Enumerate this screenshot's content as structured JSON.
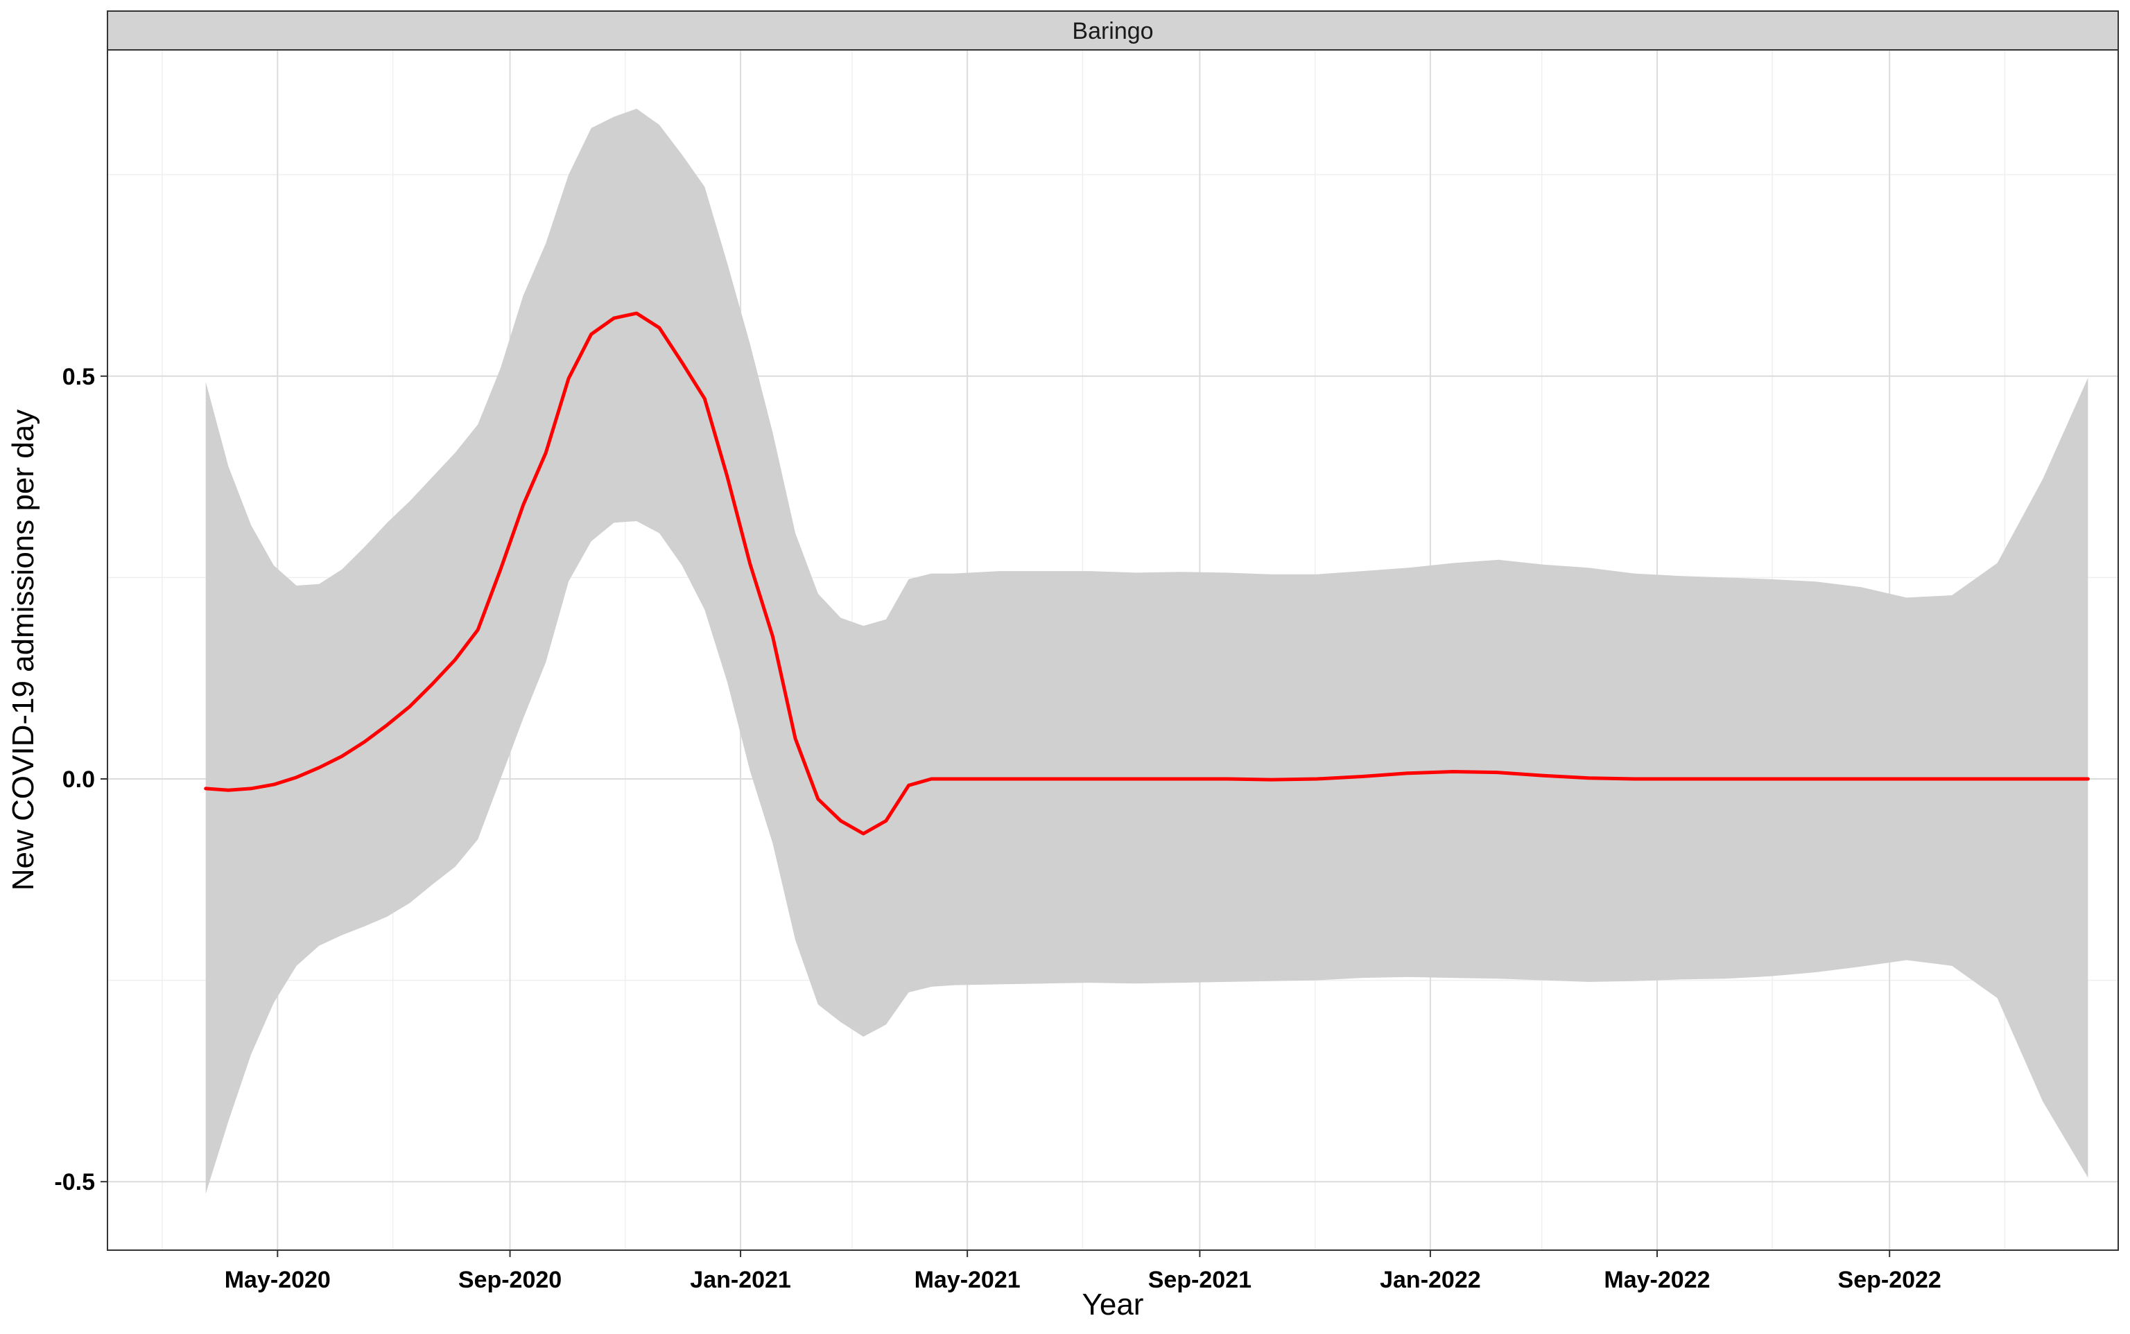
{
  "chart_data": {
    "type": "area",
    "facet_label": "Baringo",
    "xlabel": "Year",
    "ylabel": "New COVID-19 admissions per day",
    "xlim": [
      "2020-02-01",
      "2022-12-31"
    ],
    "ylim": [
      -0.585,
      0.905
    ],
    "y_ticks": [
      {
        "value": -0.5,
        "label": "-0.5"
      },
      {
        "value": 0.0,
        "label": "0.0"
      },
      {
        "value": 0.5,
        "label": "0.5"
      }
    ],
    "y_minor_ticks": [
      -0.25,
      0.25,
      0.75
    ],
    "x_ticks": [
      {
        "value": "2020-05-01",
        "label": "May-2020"
      },
      {
        "value": "2020-09-01",
        "label": "Sep-2020"
      },
      {
        "value": "2021-01-01",
        "label": "Jan-2021"
      },
      {
        "value": "2021-05-01",
        "label": "May-2021"
      },
      {
        "value": "2021-09-01",
        "label": "Sep-2021"
      },
      {
        "value": "2022-01-01",
        "label": "Jan-2022"
      },
      {
        "value": "2022-05-01",
        "label": "May-2022"
      },
      {
        "value": "2022-09-01",
        "label": "Sep-2022"
      }
    ],
    "x_minor_ticks": [
      "2020-03-01",
      "2020-07-01",
      "2020-11-01",
      "2021-03-01",
      "2021-07-01",
      "2021-11-01",
      "2022-03-01",
      "2022-07-01",
      "2022-11-01"
    ],
    "grid": true,
    "colors": {
      "line": "#ff0000",
      "ribbon": "#d0d0d0",
      "grid_major": "#dcdcdc",
      "grid_minor": "#efefef",
      "strip_fill": "#d3d3d3",
      "panel_border": "#333333"
    },
    "series": [
      {
        "x": [
          "2020-03-24",
          "2020-04-05",
          "2020-04-17",
          "2020-04-29",
          "2020-05-11",
          "2020-05-23",
          "2020-06-04",
          "2020-06-16",
          "2020-06-28",
          "2020-07-10",
          "2020-07-22",
          "2020-08-03",
          "2020-08-15",
          "2020-08-27",
          "2020-09-08",
          "2020-09-20",
          "2020-10-02",
          "2020-10-14",
          "2020-10-26",
          "2020-11-07",
          "2020-11-19",
          "2020-12-01",
          "2020-12-13",
          "2020-12-25",
          "2021-01-06",
          "2021-01-18",
          "2021-01-30",
          "2021-02-11",
          "2021-02-23",
          "2021-03-07",
          "2021-03-19",
          "2021-03-31",
          "2021-04-12",
          "2021-04-24",
          "2021-05-18",
          "2021-06-11",
          "2021-07-05",
          "2021-07-29",
          "2021-08-22",
          "2021-09-15",
          "2021-10-09",
          "2021-11-02",
          "2021-11-26",
          "2021-12-20",
          "2022-01-13",
          "2022-02-06",
          "2022-03-02",
          "2022-03-26",
          "2022-04-19",
          "2022-05-13",
          "2022-06-06",
          "2022-06-30",
          "2022-07-24",
          "2022-08-17",
          "2022-09-10",
          "2022-10-04",
          "2022-10-28",
          "2022-11-21",
          "2022-12-15"
        ],
        "y": [
          -0.012,
          -0.014,
          -0.012,
          -0.007,
          0.002,
          0.014,
          0.028,
          0.046,
          0.067,
          0.09,
          0.118,
          0.148,
          0.185,
          0.26,
          0.34,
          0.405,
          0.497,
          0.552,
          0.572,
          0.578,
          0.56,
          0.517,
          0.472,
          0.375,
          0.267,
          0.177,
          0.05,
          -0.025,
          -0.052,
          -0.068,
          -0.052,
          -0.008,
          0.0,
          0.0,
          0.0,
          0.0,
          0.0,
          0.0,
          0.0,
          0.0,
          -0.001,
          0.0,
          0.003,
          0.007,
          0.009,
          0.008,
          0.004,
          0.001,
          0.0,
          0.0,
          0.0,
          0.0,
          0.0,
          0.0,
          0.0,
          0.0,
          0.0,
          0.0,
          0.0
        ],
        "lower": [
          -0.515,
          -0.425,
          -0.342,
          -0.278,
          -0.232,
          -0.207,
          -0.194,
          -0.183,
          -0.171,
          -0.154,
          -0.131,
          -0.109,
          -0.075,
          0.0,
          0.075,
          0.145,
          0.245,
          0.295,
          0.318,
          0.32,
          0.305,
          0.265,
          0.21,
          0.12,
          0.01,
          -0.08,
          -0.2,
          -0.28,
          -0.302,
          -0.32,
          -0.305,
          -0.265,
          -0.258,
          -0.256,
          -0.255,
          -0.254,
          -0.253,
          -0.254,
          -0.253,
          -0.252,
          -0.251,
          -0.25,
          -0.247,
          -0.246,
          -0.247,
          -0.248,
          -0.25,
          -0.252,
          -0.251,
          -0.249,
          -0.248,
          -0.245,
          -0.24,
          -0.233,
          -0.225,
          -0.232,
          -0.272,
          -0.4,
          -0.495
        ],
        "upper": [
          0.493,
          0.388,
          0.315,
          0.265,
          0.24,
          0.242,
          0.26,
          0.288,
          0.318,
          0.345,
          0.375,
          0.405,
          0.44,
          0.51,
          0.6,
          0.665,
          0.75,
          0.808,
          0.822,
          0.832,
          0.812,
          0.775,
          0.735,
          0.64,
          0.54,
          0.43,
          0.305,
          0.23,
          0.2,
          0.19,
          0.198,
          0.248,
          0.255,
          0.255,
          0.258,
          0.258,
          0.258,
          0.256,
          0.257,
          0.256,
          0.254,
          0.254,
          0.258,
          0.262,
          0.268,
          0.272,
          0.266,
          0.262,
          0.255,
          0.252,
          0.25,
          0.248,
          0.245,
          0.238,
          0.225,
          0.228,
          0.268,
          0.372,
          0.498
        ]
      }
    ]
  }
}
